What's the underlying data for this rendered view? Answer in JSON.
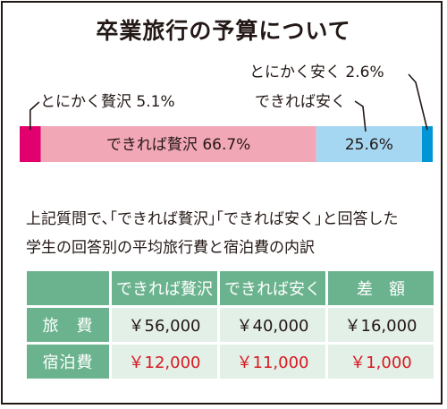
{
  "title": "卒業旅行の予算について",
  "chart_data": {
    "type": "stacked-bar",
    "segments": [
      {
        "label": "とにかく贅沢",
        "value": 5.1,
        "value_text": "5.1%",
        "color": "#e2006f"
      },
      {
        "label": "できれば贅沢",
        "value": 66.7,
        "value_text": "66.7%",
        "color": "#f2a7b7"
      },
      {
        "label": "",
        "value": 25.6,
        "value_text": "25.6%",
        "color": "#a5d6f2"
      },
      {
        "label": "とにかく安く",
        "value": 2.6,
        "value_text": "2.6%",
        "color": "#0096d6"
      }
    ],
    "callout_label": "できれば安く"
  },
  "intro": {
    "line1": "上記質問で､｢できれば贅沢｣｢できれば安く｣と回答した",
    "line2": "学生の回答別の平均旅行費と宿泊費の内訳"
  },
  "table": {
    "headers": [
      "",
      "できれば贅沢",
      "できれば安く",
      "差　額"
    ],
    "rows": [
      {
        "label": "旅　費",
        "values": [
          "￥56,000",
          "￥40,000",
          "￥16,000"
        ]
      },
      {
        "label": "宿泊費",
        "values": [
          "￥12,000",
          "￥11,000",
          "￥1,000"
        ]
      }
    ],
    "header_color": "#6bb38e",
    "cell_color": "#e3f0e8",
    "highlight_color": "#d71920"
  }
}
